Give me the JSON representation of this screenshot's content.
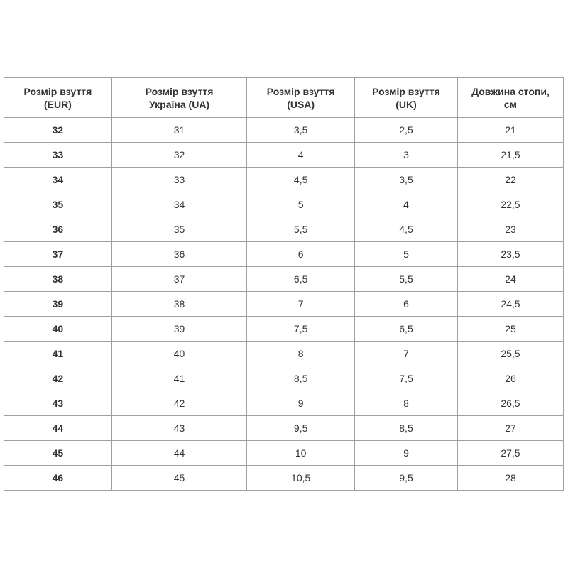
{
  "table": {
    "headers": [
      [
        "Розмір взуття",
        "(EUR)"
      ],
      [
        "Розмір взуття",
        "Україна (UA)"
      ],
      [
        "Розмір взуття",
        "(USA)"
      ],
      [
        "Розмір взуття",
        "(UK)"
      ],
      [
        "Довжина стопи,",
        "см"
      ]
    ],
    "rows": [
      [
        "32",
        "31",
        "3,5",
        "2,5",
        "21"
      ],
      [
        "33",
        "32",
        "4",
        "3",
        "21,5"
      ],
      [
        "34",
        "33",
        "4,5",
        "3,5",
        "22"
      ],
      [
        "35",
        "34",
        "5",
        "4",
        "22,5"
      ],
      [
        "36",
        "35",
        "5,5",
        "4,5",
        "23"
      ],
      [
        "37",
        "36",
        "6",
        "5",
        "23,5"
      ],
      [
        "38",
        "37",
        "6,5",
        "5,5",
        "24"
      ],
      [
        "39",
        "38",
        "7",
        "6",
        "24,5"
      ],
      [
        "40",
        "39",
        "7,5",
        "6,5",
        "25"
      ],
      [
        "41",
        "40",
        "8",
        "7",
        "25,5"
      ],
      [
        "42",
        "41",
        "8,5",
        "7,5",
        "26"
      ],
      [
        "43",
        "42",
        "9",
        "8",
        "26,5"
      ],
      [
        "44",
        "43",
        "9,5",
        "8,5",
        "27"
      ],
      [
        "45",
        "44",
        "10",
        "9",
        "27,5"
      ],
      [
        "46",
        "45",
        "10,5",
        "9,5",
        "28"
      ]
    ]
  }
}
